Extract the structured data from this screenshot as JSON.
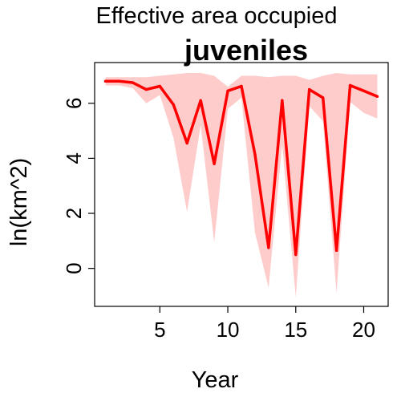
{
  "chart_data": {
    "type": "line",
    "title": "Effective area occupied",
    "subtitle": "juveniles",
    "xlabel": "Year",
    "ylabel": "ln(km^2)",
    "x": [
      1,
      2,
      3,
      4,
      5,
      6,
      7,
      8,
      9,
      10,
      11,
      12,
      13,
      14,
      15,
      16,
      17,
      18,
      19,
      20,
      21
    ],
    "series": [
      {
        "values": [
          6.8,
          6.8,
          6.75,
          6.5,
          6.62,
          5.95,
          4.55,
          6.1,
          3.8,
          6.45,
          6.62,
          4.15,
          0.75,
          6.1,
          0.5,
          6.5,
          6.2,
          0.65,
          6.65,
          6.45,
          6.25
        ],
        "lower": [
          6.65,
          6.65,
          6.55,
          6.0,
          6.3,
          4.75,
          2.05,
          5.2,
          0.95,
          5.8,
          6.2,
          1.3,
          -0.7,
          4.5,
          -1.05,
          5.9,
          5.35,
          -0.9,
          6.05,
          5.65,
          5.45
        ],
        "upper": [
          6.95,
          6.95,
          6.95,
          6.95,
          7.0,
          7.05,
          7.1,
          7.1,
          7.0,
          6.6,
          7.0,
          7.0,
          6.95,
          7.0,
          7.0,
          6.85,
          7.0,
          7.1,
          7.05,
          7.05,
          7.05
        ],
        "color": "#ff0000",
        "band_color": "#ffcccc"
      }
    ],
    "xticks": [
      5,
      10,
      15,
      20
    ],
    "yticks": [
      0,
      2,
      4,
      6
    ],
    "xlim": [
      0.2,
      21.8
    ],
    "ylim": [
      -1.38,
      7.48
    ],
    "grid": false,
    "legend": "none"
  }
}
